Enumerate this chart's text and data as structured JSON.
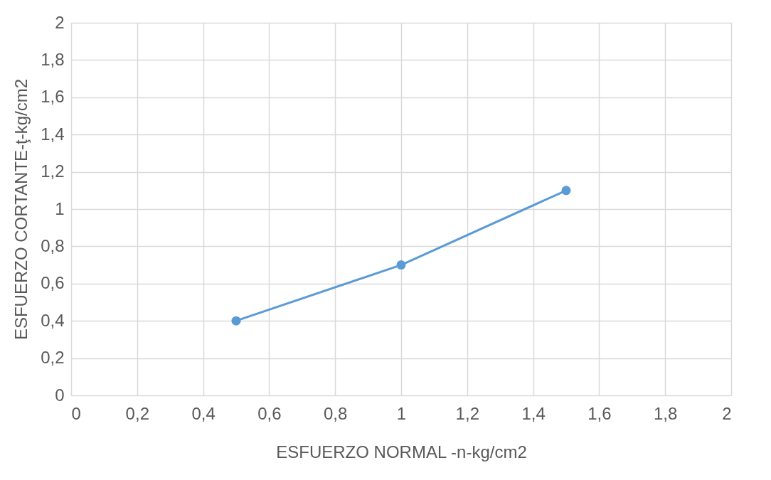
{
  "chart_data": {
    "type": "line",
    "xlabel": "ESFUERZO NORMAL -n-kg/cm2",
    "ylabel": "ESFUERZO CORTANTE-ţ-kg/cm2",
    "x": [
      0.5,
      1,
      1.5
    ],
    "series": [
      {
        "color": "#5b9bd5",
        "values": [
          0.4,
          0.7,
          1.1
        ]
      }
    ],
    "xlim": [
      0,
      2
    ],
    "ylim": [
      0,
      2
    ],
    "xticks": [
      0,
      {
        "value": 0.2,
        "label": "0,2"
      },
      {
        "value": 0.4,
        "label": "0,4"
      },
      {
        "value": 0.6,
        "label": "0,6"
      },
      {
        "value": 0.8,
        "label": "0,8"
      },
      1,
      {
        "value": 1.2,
        "label": "1,2"
      },
      {
        "value": 1.4,
        "label": "1,4"
      },
      {
        "value": 1.6,
        "label": "1,6"
      },
      {
        "value": 1.8,
        "label": "1,8"
      },
      2
    ],
    "yticks": [
      0,
      {
        "value": 0.2,
        "label": "0,2"
      },
      {
        "value": 0.4,
        "label": "0,4"
      },
      {
        "value": 0.6,
        "label": "0,6"
      },
      {
        "value": 0.8,
        "label": "0,8"
      },
      1,
      {
        "value": 1.2,
        "label": "1,2"
      },
      {
        "value": 1.4,
        "label": "1,4"
      },
      {
        "value": 1.6,
        "label": "1,6"
      },
      {
        "value": 1.8,
        "label": "1,8"
      },
      2
    ],
    "grid": true,
    "marker": "circle",
    "line_style": "solid"
  }
}
